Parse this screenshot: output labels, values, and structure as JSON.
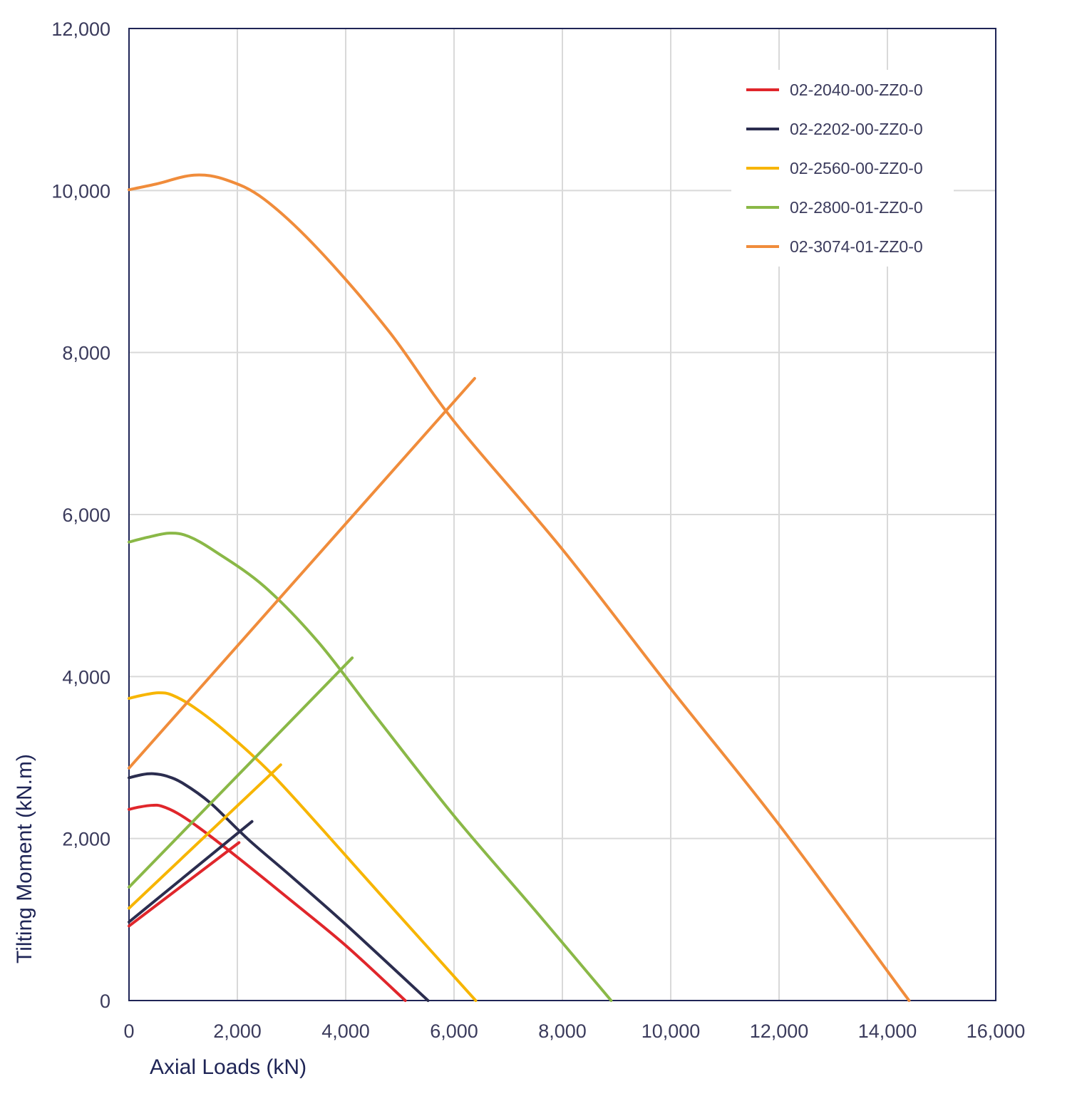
{
  "chart_data": {
    "type": "line",
    "xlabel": "Axial Loads (kN)",
    "ylabel": "Tilting Moment (kN.m)",
    "xlim": [
      0,
      16000
    ],
    "ylim": [
      0,
      12000
    ],
    "x_ticks": [
      0,
      2000,
      4000,
      6000,
      8000,
      10000,
      12000,
      14000,
      16000
    ],
    "x_tick_labels": [
      "0",
      "2,000",
      "4,000",
      "6,000",
      "8,000",
      "10,000",
      "12,000",
      "14,000",
      "16,000"
    ],
    "y_ticks": [
      0,
      2000,
      4000,
      6000,
      8000,
      10000,
      12000
    ],
    "y_tick_labels": [
      "0",
      "2,000",
      "4,000",
      "6,000",
      "8,000",
      "10,000",
      "12,000"
    ],
    "grid": true,
    "legend_position": "top-right",
    "series": [
      {
        "name": "02-2040-00-ZZ0-0",
        "color": "#e0262b",
        "curves": [
          [
            [
              0,
              2360
            ],
            [
              200,
              2390
            ],
            [
              420,
              2410
            ],
            [
              600,
              2400
            ],
            [
              900,
              2310
            ],
            [
              1300,
              2130
            ],
            [
              2000,
              1770
            ],
            [
              3000,
              1230
            ],
            [
              4000,
              680
            ],
            [
              5100,
              0
            ]
          ],
          [
            [
              0,
              920
            ],
            [
              2030,
              1950
            ]
          ]
        ]
      },
      {
        "name": "02-2202-00-ZZ0-0",
        "color": "#2b2d4f",
        "curves": [
          [
            [
              0,
              2750
            ],
            [
              250,
              2790
            ],
            [
              450,
              2800
            ],
            [
              700,
              2770
            ],
            [
              1000,
              2680
            ],
            [
              1500,
              2440
            ],
            [
              2200,
              1990
            ],
            [
              3000,
              1530
            ],
            [
              4000,
              940
            ],
            [
              5520,
              0
            ]
          ],
          [
            [
              0,
              970
            ],
            [
              2270,
              2210
            ]
          ]
        ]
      },
      {
        "name": "02-2560-00-ZZ0-0",
        "color": "#f7b500",
        "curves": [
          [
            [
              0,
              3730
            ],
            [
              250,
              3770
            ],
            [
              550,
              3800
            ],
            [
              800,
              3770
            ],
            [
              1200,
              3620
            ],
            [
              1800,
              3310
            ],
            [
              2600,
              2820
            ],
            [
              3600,
              2090
            ],
            [
              4800,
              1190
            ],
            [
              6400,
              0
            ]
          ],
          [
            [
              0,
              1140
            ],
            [
              2800,
              2910
            ]
          ]
        ]
      },
      {
        "name": "02-2800-01-ZZ0-0",
        "color": "#8ab847",
        "curves": [
          [
            [
              0,
              5660
            ],
            [
              350,
              5720
            ],
            [
              750,
              5770
            ],
            [
              1100,
              5730
            ],
            [
              1600,
              5540
            ],
            [
              2500,
              5110
            ],
            [
              3500,
              4420
            ],
            [
              4600,
              3470
            ],
            [
              6000,
              2280
            ],
            [
              7500,
              1110
            ],
            [
              8900,
              0
            ]
          ],
          [
            [
              0,
              1400
            ],
            [
              4120,
              4230
            ]
          ]
        ]
      },
      {
        "name": "02-3074-01-ZZ0-0",
        "color": "#f08c3b",
        "curves": [
          [
            [
              0,
              10010
            ],
            [
              500,
              10080
            ],
            [
              1200,
              10190
            ],
            [
              1800,
              10130
            ],
            [
              2500,
              9890
            ],
            [
              3500,
              9270
            ],
            [
              4800,
              8260
            ],
            [
              6000,
              7150
            ],
            [
              8000,
              5570
            ],
            [
              10000,
              3850
            ],
            [
              12000,
              2170
            ],
            [
              14400,
              0
            ]
          ],
          [
            [
              0,
              2870
            ],
            [
              6380,
              7680
            ]
          ]
        ]
      }
    ]
  }
}
